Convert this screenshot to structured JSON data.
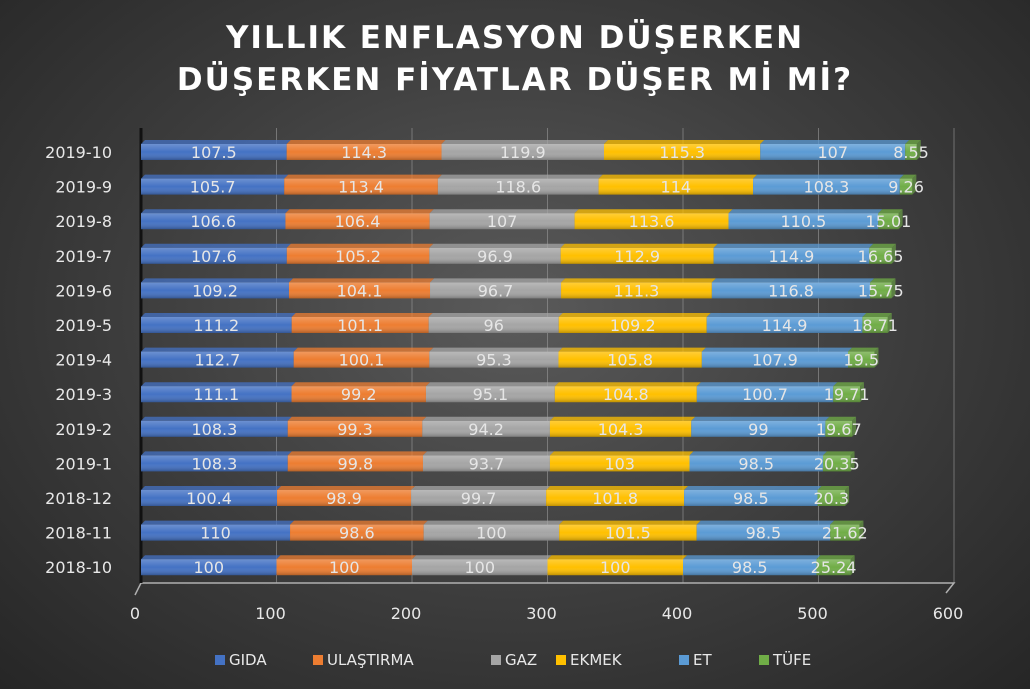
{
  "chart_data": {
    "type": "bar",
    "orientation": "horizontal",
    "stacked": true,
    "title_lines": [
      "YILLIK ENFLASYON DÜŞERKEN",
      "DÜŞERKEN FİYATLAR DÜŞER Mİ Mİ?"
    ],
    "categories": [
      "2019-10",
      "2019-9",
      "2019-8",
      "2019-7",
      "2019-6",
      "2019-5",
      "2019-4",
      "2019-3",
      "2019-2",
      "2019-1",
      "2018-12",
      "2018-11",
      "2018-10"
    ],
    "series": [
      {
        "name": "GIDA",
        "color": "#4472C4",
        "values": [
          107.5,
          105.7,
          106.6,
          107.6,
          109.2,
          111.2,
          112.7,
          111.1,
          108.3,
          108.3,
          100.4,
          110,
          100
        ],
        "labels": [
          "107.5",
          "105.7",
          "106.6",
          "107.6",
          "109.2",
          "111.2",
          "112.7",
          "111.1",
          "108.3",
          "108.3",
          "100.4",
          "110",
          "100"
        ]
      },
      {
        "name": "ULAŞTIRMA",
        "color": "#ED7D31",
        "values": [
          114.3,
          113.4,
          106.4,
          105.2,
          104.1,
          101.1,
          100.1,
          99.2,
          99.3,
          99.8,
          98.9,
          98.6,
          100
        ],
        "labels": [
          "114.3",
          "113.4",
          "106.4",
          "105.2",
          "104.1",
          "101.1",
          "100.1",
          "99.2",
          "99.3",
          "99.8",
          "98.9",
          "98.6",
          "100"
        ]
      },
      {
        "name": "GAZ",
        "color": "#A5A5A5",
        "values": [
          119.9,
          118.6,
          107,
          96.9,
          96.7,
          96,
          95.3,
          95.1,
          94.2,
          93.7,
          99.7,
          100,
          100
        ],
        "labels": [
          "119.9",
          "118.6",
          "107",
          "96.9",
          "96.7",
          "96",
          "95.3",
          "95.1",
          "94.2",
          "93.7",
          "99.7",
          "100",
          "100"
        ]
      },
      {
        "name": "EKMEK",
        "color": "#FFC000",
        "values": [
          115.3,
          114,
          113.6,
          112.9,
          111.3,
          109.2,
          105.8,
          104.8,
          104.3,
          103,
          101.8,
          101.5,
          100
        ],
        "labels": [
          "115.3",
          "114",
          "113.6",
          "112.9",
          "111.3",
          "109.2",
          "105.8",
          "104.8",
          "104.3",
          "103",
          "101.8",
          "101.5",
          "100"
        ]
      },
      {
        "name": "ET",
        "color": "#5B9BD5",
        "values": [
          107,
          108.3,
          110.5,
          114.9,
          116.8,
          114.9,
          107.9,
          100.7,
          99,
          98.5,
          98.5,
          98.5,
          98.5
        ],
        "labels": [
          "107",
          "108.3",
          "110.5",
          "114.9",
          "116.8",
          "114.9",
          "107.9",
          "100.7",
          "99",
          "98.5",
          "98.5",
          "98.5",
          "98.5"
        ]
      },
      {
        "name": "TÜFE",
        "color": "#70AD47",
        "values": [
          8.55,
          9.26,
          15.01,
          16.65,
          15.75,
          18.71,
          19.5,
          19.71,
          19.67,
          20.35,
          20.3,
          21.62,
          25.24
        ],
        "labels": [
          "8.55",
          "9.26",
          "15.01",
          "16.65",
          "15.75",
          "18.71",
          "19.5",
          "19.71",
          "19.67",
          "20.35",
          "20.3",
          "21.62",
          "25.24"
        ]
      }
    ],
    "xlim": [
      0,
      600
    ],
    "xticks": [
      "0",
      "100",
      "200",
      "300",
      "400",
      "500",
      "600"
    ],
    "legend_position": "bottom",
    "grid": true
  }
}
